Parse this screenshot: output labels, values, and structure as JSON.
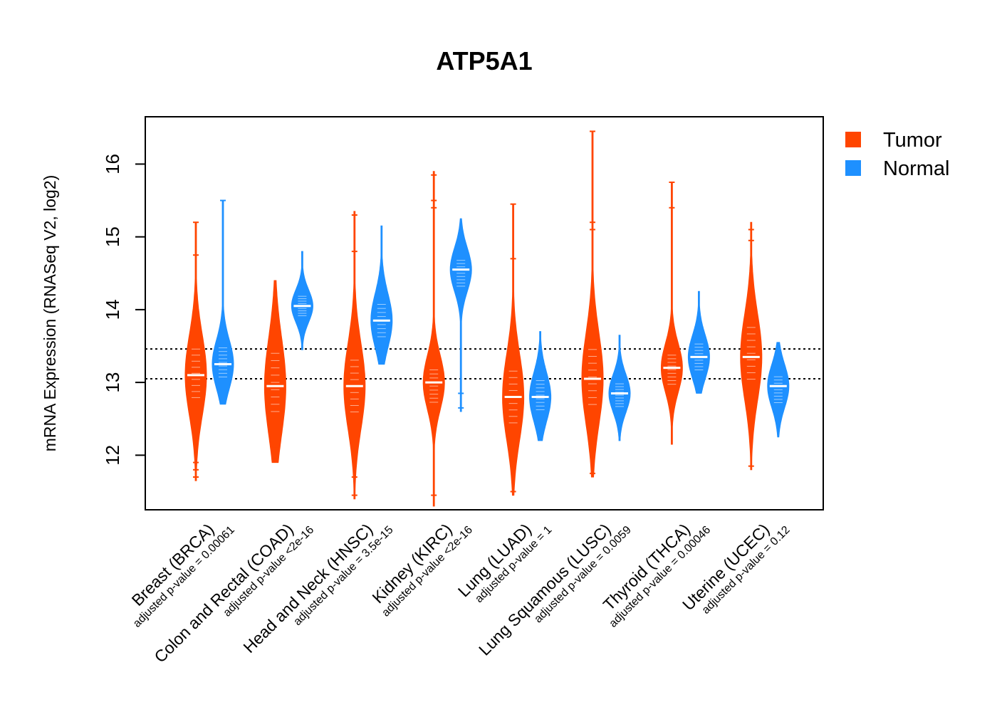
{
  "chart_data": {
    "type": "violin",
    "title": "ATP5A1",
    "ylabel": "mRNA Expression (RNASeq V2, log2)",
    "ylim": [
      11.25,
      16.65
    ],
    "yticks": [
      12,
      13,
      14,
      15,
      16
    ],
    "ytick_labels": [
      "12",
      "13",
      "14",
      "15",
      "16"
    ],
    "reference_lines": [
      13.05,
      13.46
    ],
    "legend": {
      "position": "top-right",
      "entries": [
        {
          "name": "Tumor",
          "color": "#FF4500"
        },
        {
          "name": "Normal",
          "color": "#1E90FF"
        }
      ]
    },
    "categories": [
      "Breast (BRCA)",
      "Colon and Rectal (COAD)",
      "Head and Neck (HNSC)",
      "Kidney (KIRC)",
      "Lung (LUAD)",
      "Lung Squamous (LUSC)",
      "Thyroid (THCA)",
      "Uterine (UCEC)"
    ],
    "pvalues": [
      "adjusted p-value = 0.00061",
      "adjusted p-value <2e-16",
      "adjusted p-value = 3.5e-15",
      "adjusted p-value <2e-16",
      "adjusted p-value = 1",
      "adjusted p-value = 0.0059",
      "adjusted p-value = 0.00046",
      "adjusted p-value = 0.12"
    ],
    "series": [
      {
        "name": "Tumor",
        "color": "#FF4500",
        "groups": [
          {
            "median": 13.1,
            "q1": 12.75,
            "q3": 13.5,
            "min": 11.65,
            "max": 15.2,
            "outliers": [
              15.2,
              14.75,
              11.7,
              11.8,
              11.9
            ]
          },
          {
            "median": 12.95,
            "q1": 12.55,
            "q3": 13.45,
            "min": 11.9,
            "max": 14.4,
            "outliers": [
              11.95,
              12.1
            ]
          },
          {
            "median": 12.95,
            "q1": 12.55,
            "q3": 13.35,
            "min": 11.4,
            "max": 15.35,
            "outliers": [
              15.3,
              14.8,
              11.45,
              11.7
            ]
          },
          {
            "median": 13.0,
            "q1": 12.7,
            "q3": 13.2,
            "min": 11.3,
            "max": 15.9,
            "outliers": [
              15.85,
              15.5,
              15.4,
              11.45
            ]
          },
          {
            "median": 12.8,
            "q1": 12.4,
            "q3": 13.2,
            "min": 11.45,
            "max": 15.45,
            "outliers": [
              15.45,
              14.7,
              11.5
            ]
          },
          {
            "median": 13.05,
            "q1": 12.65,
            "q3": 13.5,
            "min": 11.7,
            "max": 16.45,
            "outliers": [
              16.45,
              15.2,
              15.1,
              11.75
            ]
          },
          {
            "median": 13.2,
            "q1": 12.95,
            "q3": 13.4,
            "min": 12.15,
            "max": 15.75,
            "outliers": [
              15.75,
              15.4
            ]
          },
          {
            "median": 13.35,
            "q1": 13.0,
            "q3": 13.8,
            "min": 11.8,
            "max": 15.2,
            "outliers": [
              15.1,
              14.95,
              11.85
            ]
          }
        ]
      },
      {
        "name": "Normal",
        "color": "#1E90FF",
        "groups": [
          {
            "median": 13.25,
            "q1": 13.05,
            "q3": 13.5,
            "min": 12.7,
            "max": 15.5,
            "outliers": [
              15.5
            ]
          },
          {
            "median": 14.05,
            "q1": 13.9,
            "q3": 14.2,
            "min": 13.45,
            "max": 14.8,
            "outliers": []
          },
          {
            "median": 13.85,
            "q1": 13.6,
            "q3": 14.1,
            "min": 13.25,
            "max": 15.15,
            "outliers": []
          },
          {
            "median": 14.55,
            "q1": 14.3,
            "q3": 14.7,
            "min": 12.6,
            "max": 15.25,
            "outliers": [
              12.85,
              12.65
            ]
          },
          {
            "median": 12.8,
            "q1": 12.6,
            "q3": 13.05,
            "min": 12.2,
            "max": 13.7,
            "outliers": []
          },
          {
            "median": 12.85,
            "q1": 12.65,
            "q3": 13.0,
            "min": 12.2,
            "max": 13.65,
            "outliers": []
          },
          {
            "median": 13.35,
            "q1": 13.15,
            "q3": 13.55,
            "min": 12.85,
            "max": 14.25,
            "outliers": []
          },
          {
            "median": 12.95,
            "q1": 12.7,
            "q3": 13.1,
            "min": 12.25,
            "max": 13.55,
            "outliers": []
          }
        ]
      }
    ]
  }
}
